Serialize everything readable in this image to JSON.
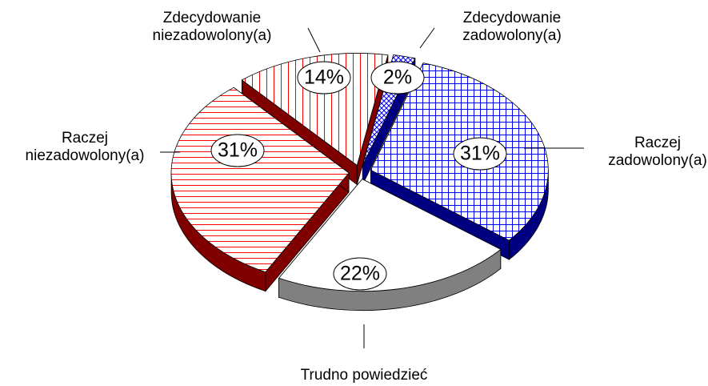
{
  "chart_data": {
    "type": "pie3d",
    "categories": [
      "Zdecydowanie zadowolony(a)",
      "Raczej zadowolony(a)",
      "Trudno powiedzieć",
      "Raczej niezadowolony(a)",
      "Zdecydowanie niezadowolony(a)"
    ],
    "values": [
      2,
      31,
      22,
      31,
      14
    ],
    "value_labels": [
      "2%",
      "31%",
      "22%",
      "31%",
      "14%"
    ],
    "colors": [
      "#0000ff",
      "#0000ff",
      "#ffffff",
      "#ff0000",
      "#ff0000"
    ]
  }
}
